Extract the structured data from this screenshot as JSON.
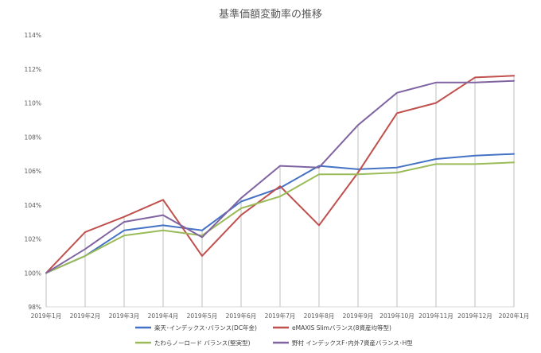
{
  "chart_data": {
    "type": "line",
    "title": "基準価額変動率の推移",
    "xlabel": "",
    "ylabel": "",
    "categories": [
      "2019年1月",
      "2019年2月",
      "2019年3月",
      "2019年4月",
      "2019年5月",
      "2019年6月",
      "2019年7月",
      "2019年8月",
      "2019年9月",
      "2019年10月",
      "2019年11月",
      "2019年12月",
      "2020年1月"
    ],
    "y_ticks": [
      "98%",
      "100%",
      "102%",
      "104%",
      "106%",
      "108%",
      "110%",
      "112%",
      "114%"
    ],
    "ylim": [
      98,
      114
    ],
    "y_tick_step": 2,
    "grid": "vertical drop lines only",
    "legend_position": "bottom",
    "series": [
      {
        "name": "楽天･インデックス･バランス(DC年金)",
        "color": "#4472C4",
        "values": [
          100,
          101.0,
          102.5,
          102.8,
          102.5,
          104.2,
          105.0,
          106.3,
          106.1,
          106.2,
          106.7,
          106.9,
          107.0
        ]
      },
      {
        "name": "eMAXIS Slimバランス(8資産均等型)",
        "color": "#C0504D",
        "values": [
          100,
          102.4,
          103.3,
          104.3,
          101.0,
          103.4,
          105.1,
          102.8,
          105.9,
          109.4,
          110.0,
          111.5,
          111.6
        ]
      },
      {
        "name": "たわらノーロード バランス(堅実型)",
        "color": "#9BBB59",
        "values": [
          100,
          101.0,
          102.2,
          102.5,
          102.2,
          103.8,
          104.5,
          105.8,
          105.8,
          105.9,
          106.4,
          106.4,
          106.5
        ]
      },
      {
        "name": "野村 インデックスF･内外7資産バランス･H型",
        "color": "#8064A2",
        "values": [
          100,
          101.4,
          103.0,
          103.4,
          102.1,
          104.4,
          106.3,
          106.2,
          108.7,
          110.6,
          111.2,
          111.2,
          111.3
        ]
      }
    ]
  }
}
